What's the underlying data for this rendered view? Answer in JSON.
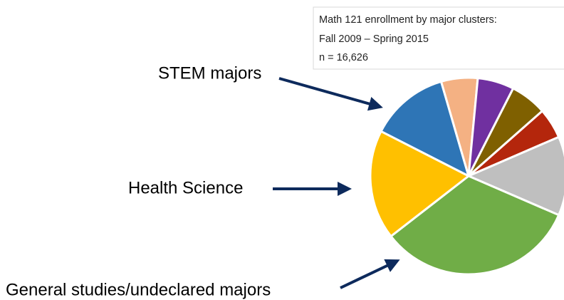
{
  "chart_data": {
    "type": "pie",
    "title_lines": [
      "Math 121 enrollment by major clusters:",
      "Fall 2009 – Spring 2015",
      "n = 16,626"
    ],
    "annotations": [
      "STEM majors",
      "Health Science",
      "General studies/undeclared majors"
    ],
    "categories": [
      null,
      null,
      null,
      null,
      null,
      null,
      null,
      null
    ],
    "values": [
      13,
      6,
      6,
      6,
      5,
      13,
      33,
      18
    ],
    "colors": [
      "#2e75b6",
      "#f4b183",
      "#7030a0",
      "#7f6000",
      "#b4260c",
      "#bfbfbf",
      "#70ad47",
      "#ffc000"
    ]
  }
}
